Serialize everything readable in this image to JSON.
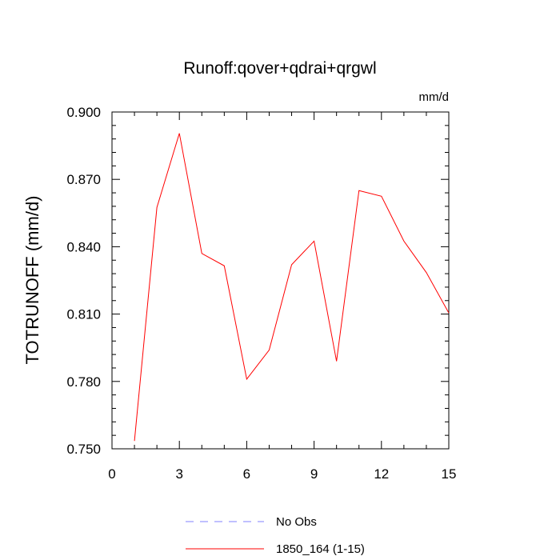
{
  "chart_data": {
    "type": "line",
    "title": "Runoff:qover+qdrai+qrgwl",
    "units": "mm/d",
    "xlabel": "",
    "ylabel": "TOTRUNOFF  (mm/d)",
    "xlim": [
      0,
      15
    ],
    "ylim": [
      0.75,
      0.9
    ],
    "x_ticks": [
      "0",
      "3",
      "6",
      "9",
      "12",
      "15"
    ],
    "y_ticks": [
      "0.750",
      "0.780",
      "0.810",
      "0.840",
      "0.870",
      "0.900"
    ],
    "grid": false,
    "legend_position": "bottom",
    "series": [
      {
        "name": "No Obs",
        "color": "#8080ff",
        "style": "dashed",
        "x": [],
        "values": []
      },
      {
        "name": "1850_164 (1-15)",
        "color": "#ff0000",
        "style": "solid",
        "x": [
          1,
          2,
          3,
          4,
          5,
          6,
          7,
          8,
          9,
          10,
          11,
          12,
          13,
          14,
          15
        ],
        "values": [
          0.7535,
          0.8575,
          0.8905,
          0.837,
          0.8315,
          0.781,
          0.794,
          0.832,
          0.8425,
          0.789,
          0.865,
          0.8625,
          0.8425,
          0.8285,
          0.8105
        ]
      }
    ]
  }
}
